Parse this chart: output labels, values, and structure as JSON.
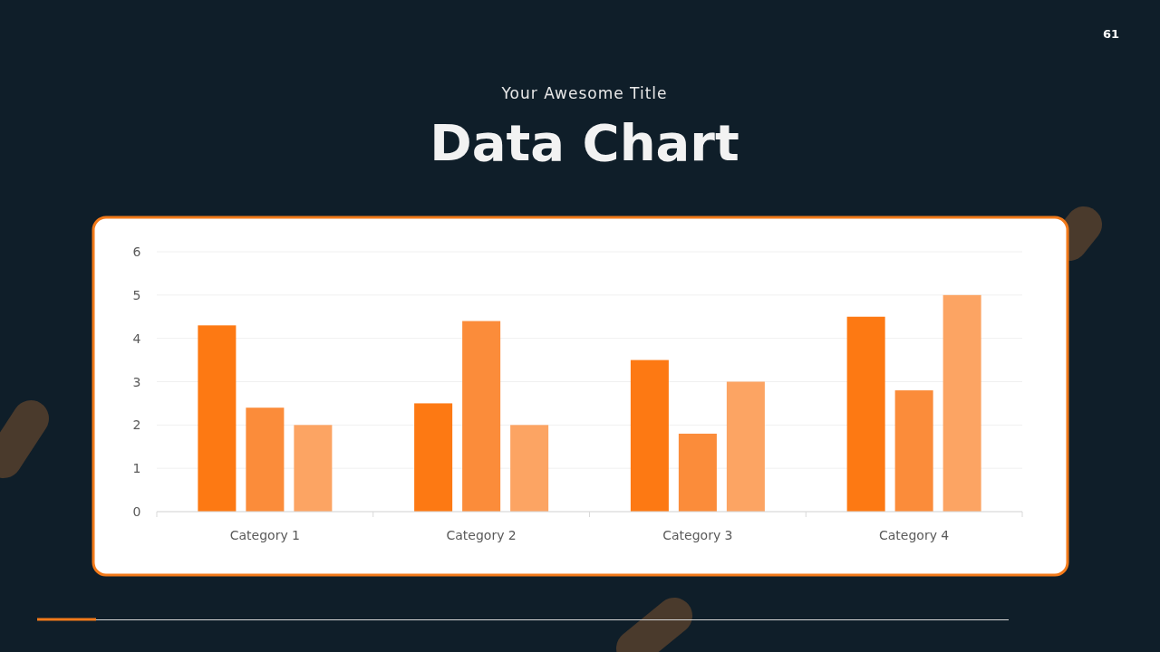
{
  "chart_data": {
    "type": "bar",
    "title": "Data Chart",
    "subtitle": "Your Awesome Title",
    "annotations": [
      "61"
    ],
    "categories": [
      "Category 1",
      "Category 2",
      "Category 3",
      "Category 4"
    ],
    "series": [
      {
        "color": "#fd7913",
        "values": [
          4.3,
          2.5,
          3.5,
          4.5
        ]
      },
      {
        "color": "#fb8c3a",
        "values": [
          2.4,
          4.4,
          1.8,
          2.8
        ]
      },
      {
        "color": "#fca463",
        "values": [
          2.0,
          2.0,
          3.0,
          5.0
        ]
      }
    ],
    "ylim": [
      0,
      6
    ],
    "yticks": [
      0,
      1,
      2,
      3,
      4,
      5,
      6
    ],
    "grid": "y"
  }
}
